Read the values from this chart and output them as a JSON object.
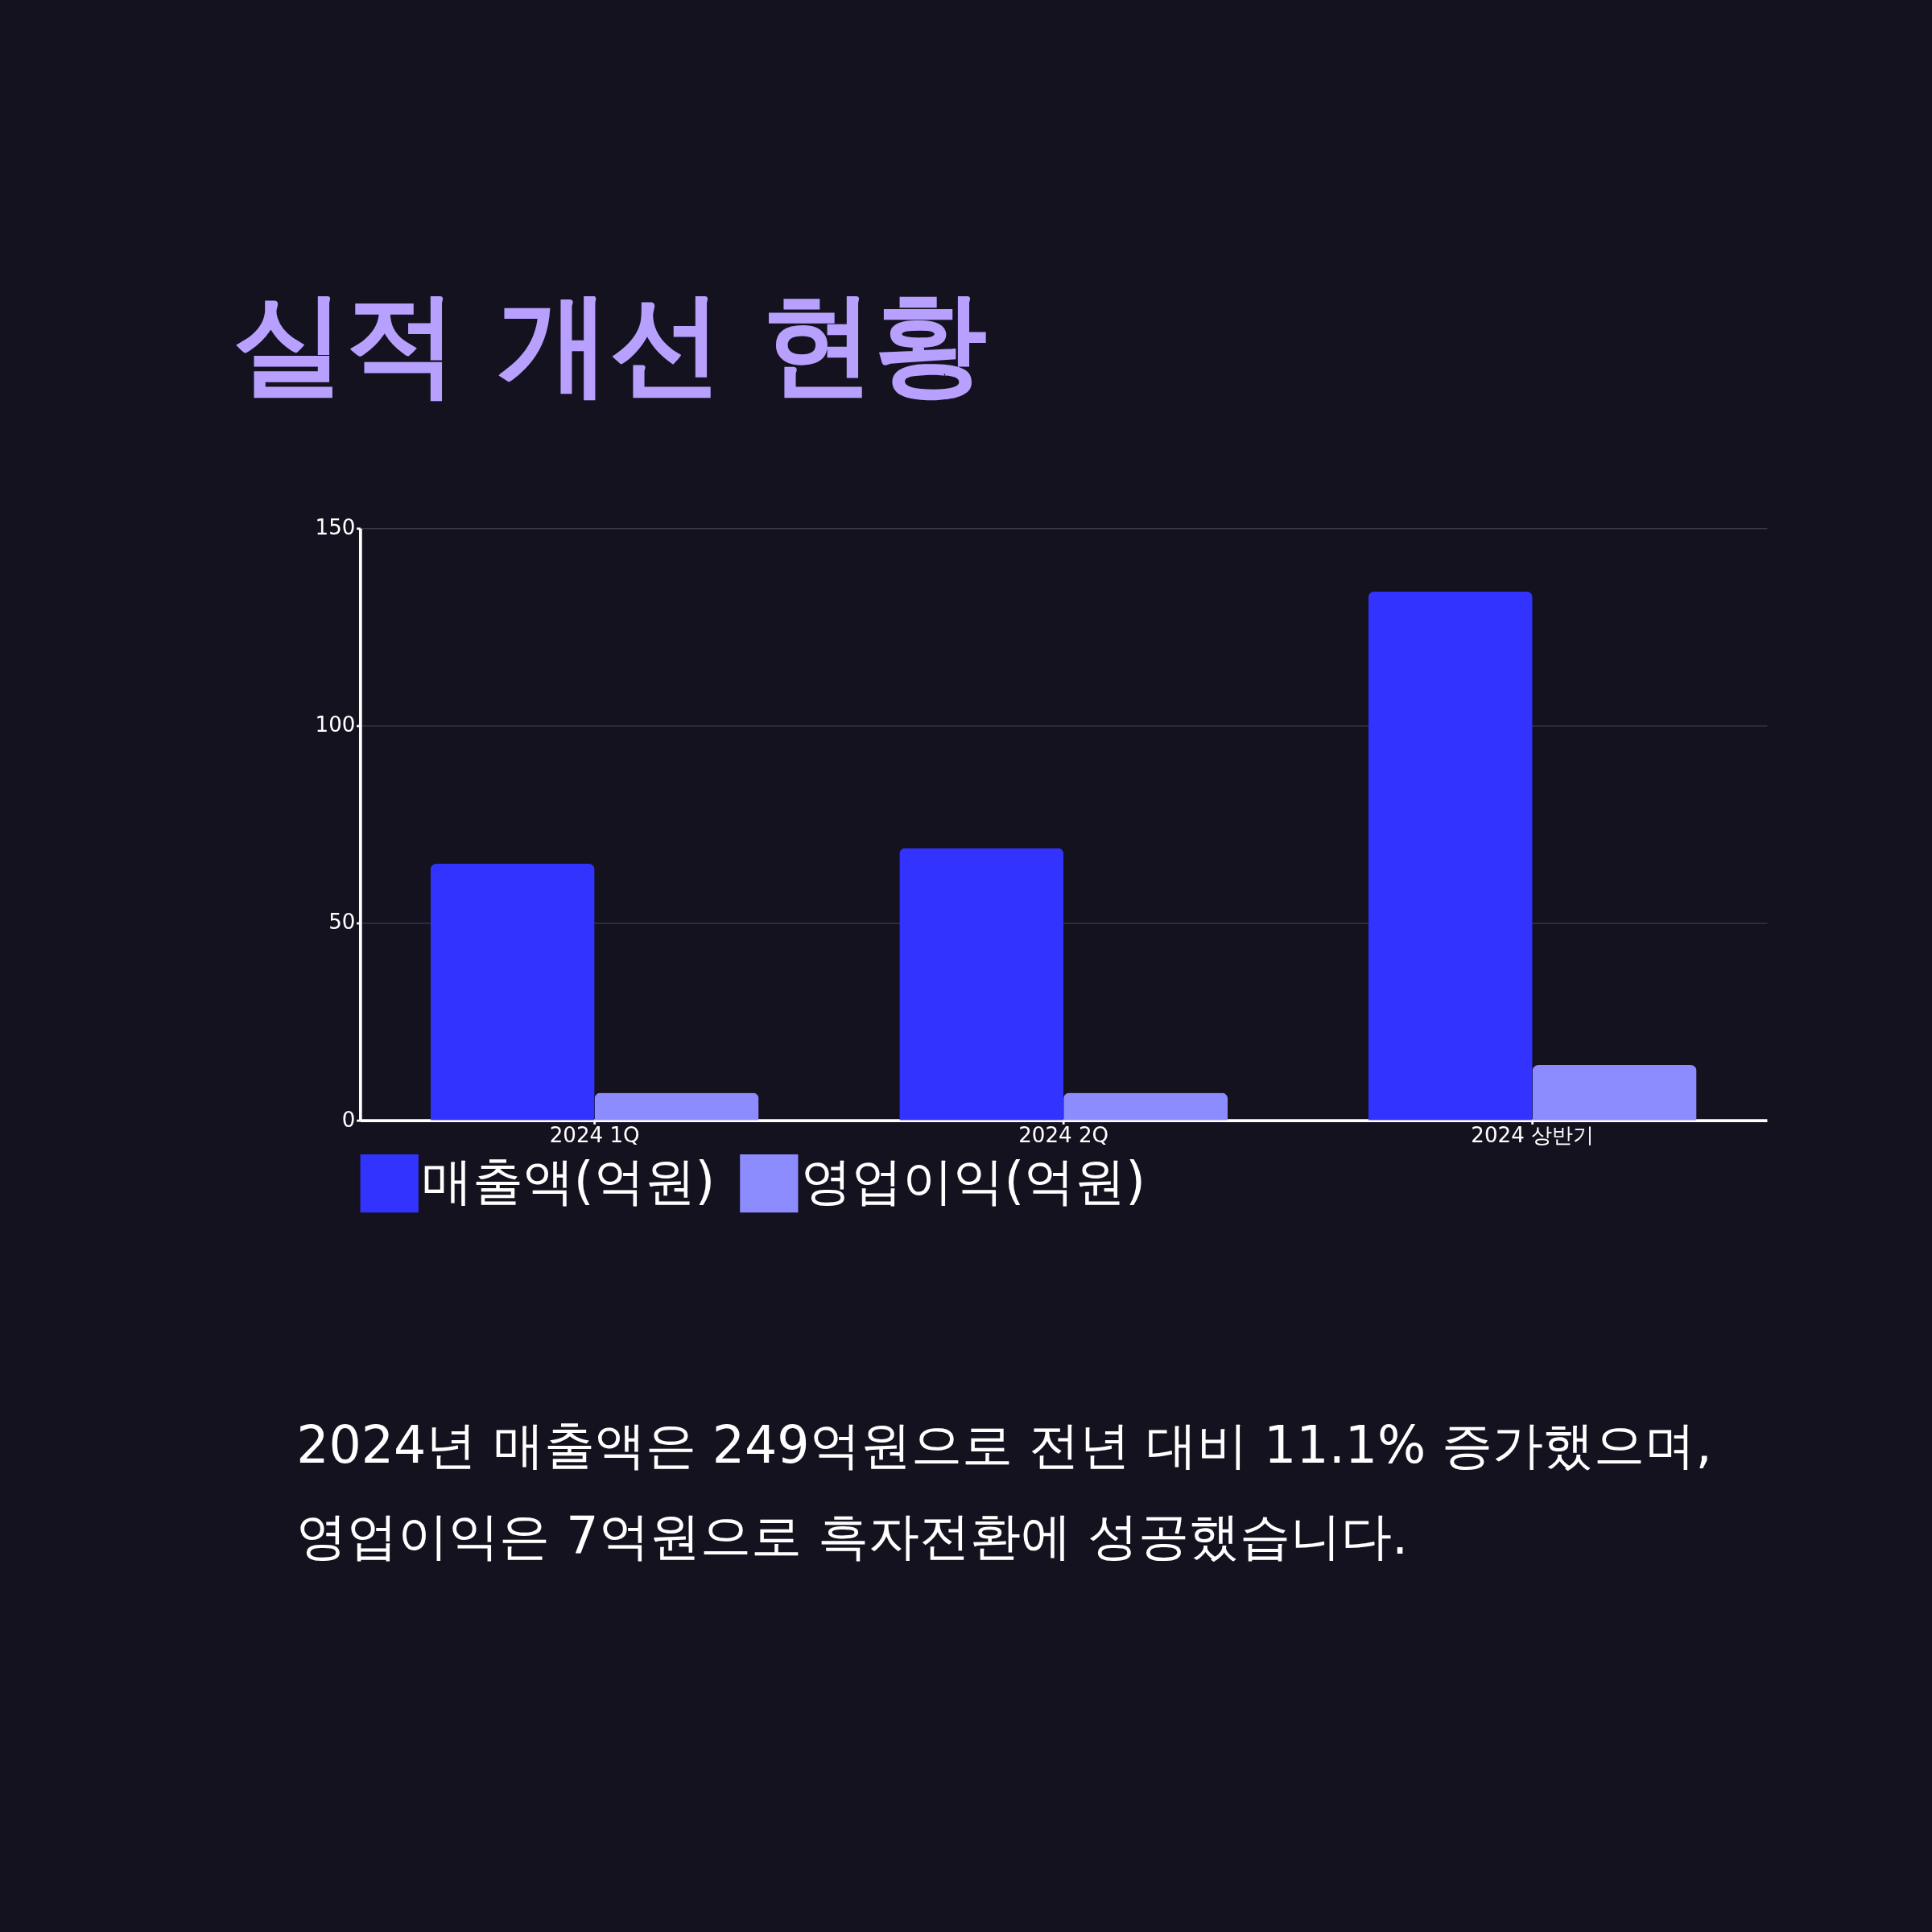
{
  "chart_data": {
    "type": "bar",
    "title": "실적 개선 현황",
    "categories": [
      "2024 1Q",
      "2024 2Q",
      "2024 상반기"
    ],
    "series": [
      {
        "name": "매출액(억원)",
        "color": "#3333ff",
        "values": [
          65,
          69,
          134
        ]
      },
      {
        "name": "영업이익(억원)",
        "color": "#8c8cff",
        "values": [
          7,
          7,
          14
        ]
      }
    ],
    "ylim": [
      0,
      150
    ],
    "yticks": [
      0,
      50,
      100,
      150
    ],
    "grid": "y",
    "legend": "bottom",
    "annotations": [
      "2024년 매출액은 249억원으로 전년 대비 11.1% 증가했으며,",
      "영업이익은 7억원으로 흑자전환에 성공했습니다."
    ]
  }
}
